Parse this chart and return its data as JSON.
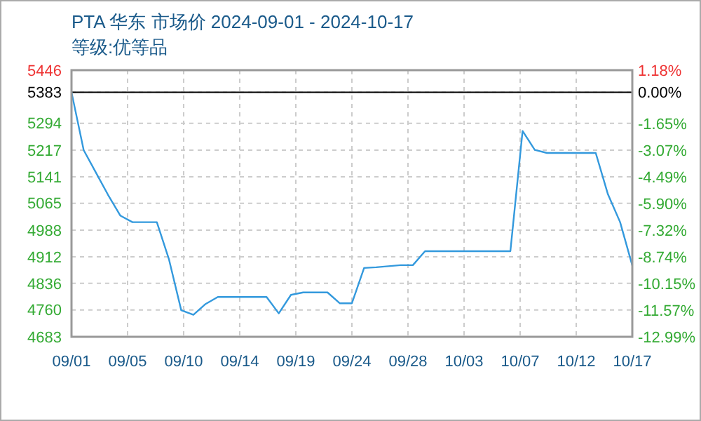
{
  "chart_data": {
    "type": "line",
    "title": "PTA 华东 市场价 2024-09-01 - 2024-10-17",
    "subtitle": "等级:优等品",
    "x": [
      "2024-09-01",
      "2024-09-02",
      "2024-09-03",
      "2024-09-04",
      "2024-09-05",
      "2024-09-06",
      "2024-09-07",
      "2024-09-08",
      "2024-09-09",
      "2024-09-10",
      "2024-09-11",
      "2024-09-12",
      "2024-09-13",
      "2024-09-14",
      "2024-09-15",
      "2024-09-16",
      "2024-09-17",
      "2024-09-18",
      "2024-09-19",
      "2024-09-20",
      "2024-09-21",
      "2024-09-22",
      "2024-09-23",
      "2024-09-24",
      "2024-09-25",
      "2024-09-26",
      "2024-09-27",
      "2024-09-28",
      "2024-09-29",
      "2024-09-30",
      "2024-10-01",
      "2024-10-02",
      "2024-10-03",
      "2024-10-04",
      "2024-10-05",
      "2024-10-06",
      "2024-10-07",
      "2024-10-08",
      "2024-10-09",
      "2024-10-10",
      "2024-10-11",
      "2024-10-12",
      "2024-10-13",
      "2024-10-14",
      "2024-10-15",
      "2024-10-16",
      "2024-10-17"
    ],
    "series": [
      {
        "color": "#3399dd",
        "values": [
          5383,
          5217,
          5153,
          5089,
          5030,
          5011,
          5011,
          5011,
          4904,
          4759,
          4746,
          4777,
          4797,
          4797,
          4797,
          4797,
          4797,
          4750,
          4803,
          4810,
          4810,
          4810,
          4779,
          4779,
          4880,
          4882,
          4885,
          4888,
          4888,
          4928,
          4928,
          4928,
          4928,
          4928,
          4928,
          4928,
          4928,
          5272,
          5218,
          5209,
          5209,
          5209,
          5209,
          5209,
          5091,
          5011,
          4887
        ]
      }
    ],
    "xlim": [
      "2024-09-01",
      "2024-10-17"
    ],
    "xticks": [
      {
        "value": "2024-09-01",
        "label": "09/01"
      },
      {
        "value": "2024-09-05T14:24",
        "label": "09/05"
      },
      {
        "value": "2024-09-10T04:48",
        "label": "09/10"
      },
      {
        "value": "2024-09-14T19:12",
        "label": "09/14"
      },
      {
        "value": "2024-09-19T09:36",
        "label": "09/19"
      },
      {
        "value": "2024-09-24",
        "label": "09/24"
      },
      {
        "value": "2024-09-28T14:24",
        "label": "09/28"
      },
      {
        "value": "2024-10-03T04:48",
        "label": "10/03"
      },
      {
        "value": "2024-10-07T19:12",
        "label": "10/07"
      },
      {
        "value": "2024-10-12T09:36",
        "label": "10/12"
      },
      {
        "value": "2024-10-17",
        "label": "10/17"
      }
    ],
    "ylim": [
      4683,
      5446
    ],
    "yticks": [
      5446,
      5383,
      5294,
      5217,
      5141,
      5065,
      4988,
      4912,
      4836,
      4760,
      4683
    ],
    "y2lim": [
      -12.99,
      1.18
    ],
    "y2ticks": [
      {
        "value": 1.18,
        "label": "1.18%"
      },
      {
        "value": 0,
        "label": "0.00%"
      },
      {
        "value": -1.65,
        "label": "-1.65%"
      },
      {
        "value": -3.07,
        "label": "-3.07%"
      },
      {
        "value": -4.49,
        "label": "-4.49%"
      },
      {
        "value": -5.9,
        "label": "-5.90%"
      },
      {
        "value": -7.32,
        "label": "-7.32%"
      },
      {
        "value": -8.74,
        "label": "-8.74%"
      },
      {
        "value": -10.15,
        "label": "-10.15%"
      },
      {
        "value": -11.57,
        "label": "-11.57%"
      },
      {
        "value": -12.99,
        "label": "-12.99%"
      }
    ],
    "ref_lines": [
      {
        "axis": "y",
        "value": 5383,
        "color": "#000000"
      }
    ],
    "grid": true,
    "marker": "none",
    "line_style": "solid"
  }
}
